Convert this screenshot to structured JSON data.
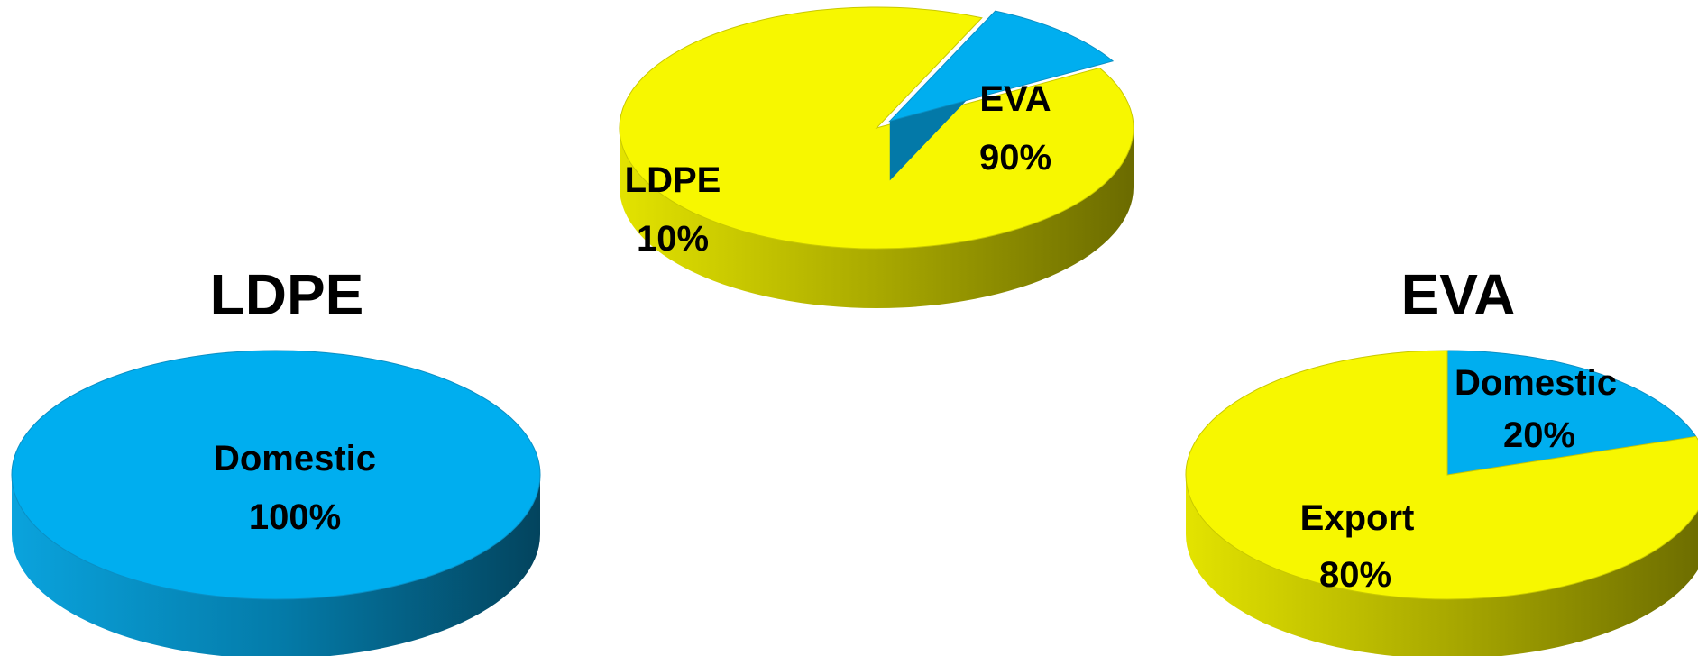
{
  "chart_data": [
    {
      "type": "pie",
      "title": "",
      "slices": [
        {
          "label": "EVA",
          "value_label": "90%",
          "value": 90,
          "color": "#F7F700",
          "exploded": false
        },
        {
          "label": "LDPE",
          "value_label": "10%",
          "value": 10,
          "color": "#00AEEF",
          "exploded": true
        }
      ],
      "style": "3d"
    },
    {
      "type": "pie",
      "title": "LDPE",
      "slices": [
        {
          "label": "Domestic",
          "value_label": "100%",
          "value": 100,
          "color": "#00AEEF"
        }
      ],
      "style": "3d"
    },
    {
      "type": "pie",
      "title": "EVA",
      "slices": [
        {
          "label": "Domestic",
          "value_label": "20%",
          "value": 20,
          "color": "#00AEEF"
        },
        {
          "label": "Export",
          "value_label": "80%",
          "value": 80,
          "color": "#F7F700"
        }
      ],
      "style": "3d"
    }
  ]
}
